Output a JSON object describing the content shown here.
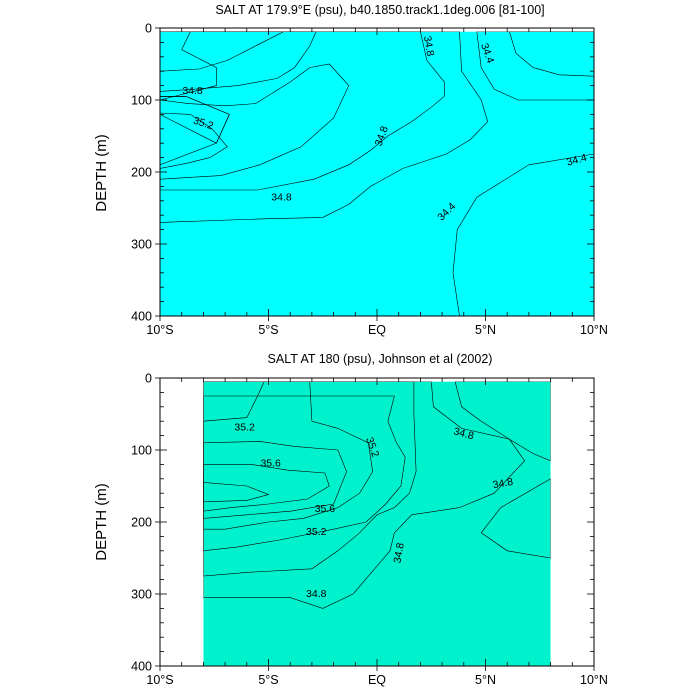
{
  "chart_data": [
    {
      "type": "contour",
      "title": "SALT AT 179.9°E (psu), b40.1850.track1.1deg.006 [81-100]",
      "ylabel": "DEPTH (m)",
      "xlim": [
        -10,
        10
      ],
      "ylim": [
        400,
        0
      ],
      "x_ticks": [
        {
          "value": -10,
          "label": "10°S"
        },
        {
          "value": -5,
          "label": "5°S"
        },
        {
          "value": 0,
          "label": "EQ"
        },
        {
          "value": 5,
          "label": "5°N"
        },
        {
          "value": 10,
          "label": "10°N"
        }
      ],
      "y_ticks": [
        {
          "value": 0,
          "label": "0"
        },
        {
          "value": 100,
          "label": "100"
        },
        {
          "value": 200,
          "label": "200"
        },
        {
          "value": 300,
          "label": "300"
        },
        {
          "value": 400,
          "label": "400"
        }
      ],
      "data_extent_x": [
        -10,
        10
      ],
      "data_extent_y": [
        5,
        400
      ],
      "regions": [
        {
          "level": "34.2-34.4",
          "color": "#00ccff",
          "points": [
            [
              -10,
              5
            ],
            [
              -4.3,
              5
            ],
            [
              -5.4,
              22
            ],
            [
              -6.9,
              45
            ],
            [
              -8.2,
              57
            ],
            [
              -10,
              60
            ]
          ]
        },
        {
          "level": "34.2-34.4",
          "color": "#00ccff",
          "points": [
            [
              6.1,
              5
            ],
            [
              10,
              5
            ],
            [
              10,
              67
            ],
            [
              8.4,
              65
            ],
            [
              7.2,
              55
            ],
            [
              6.4,
              35
            ]
          ]
        },
        {
          "level": "34.4-34.6",
          "color": "#33e6ff",
          "points": [
            [
              -10,
              5
            ],
            [
              -2.8,
              5
            ],
            [
              -3.1,
              25
            ],
            [
              -3.8,
              55
            ],
            [
              -4.6,
              70
            ],
            [
              -6.4,
              80
            ],
            [
              -8.4,
              85
            ],
            [
              -10,
              88
            ]
          ]
        },
        {
          "level": "34.4-34.6",
          "color": "#33e6ff",
          "points": [
            [
              4.6,
              5
            ],
            [
              10,
              5
            ],
            [
              10,
              100
            ],
            [
              6.5,
              100
            ],
            [
              5.4,
              85
            ],
            [
              4.8,
              55
            ]
          ]
        },
        {
          "level": "34.4-34.6",
          "color": "#33e6ff",
          "points": [
            [
              10,
              175
            ],
            [
              7,
              190
            ],
            [
              4.6,
              235
            ],
            [
              3.7,
              280
            ],
            [
              3.5,
              340
            ],
            [
              3.8,
              400
            ],
            [
              10,
              400
            ]
          ]
        },
        {
          "level": "34.6-34.8",
          "color": "#00f2e6",
          "points": [
            [
              -10,
              5
            ],
            [
              3.8,
              5
            ],
            [
              3.9,
              60
            ],
            [
              4.8,
              100
            ],
            [
              5.1,
              130
            ],
            [
              4.3,
              155
            ],
            [
              3.2,
              175
            ],
            [
              1.2,
              195
            ],
            [
              -0.3,
              220
            ],
            [
              -1.3,
              245
            ],
            [
              -2.5,
              263
            ],
            [
              -5.2,
              265
            ],
            [
              -10,
              270
            ],
            [
              -10,
              120
            ],
            [
              -7.4,
              160
            ],
            [
              -6.8,
              120
            ],
            [
              -8.8,
              95
            ],
            [
              -10,
              95
            ]
          ]
        },
        {
          "level": "34.8-35.0",
          "color": "#00f0b0",
          "points": [
            [
              -10,
              95
            ],
            [
              -8.8,
              95
            ],
            [
              -6.8,
              120
            ],
            [
              -7.4,
              160
            ],
            [
              -10,
              190
            ]
          ]
        },
        {
          "level": "34.8-35.0",
          "color": "#00f0b0",
          "points": [
            [
              -8.6,
              5
            ],
            [
              2,
              5
            ],
            [
              2.3,
              45
            ],
            [
              3.1,
              75
            ],
            [
              3.1,
              95
            ],
            [
              2.5,
              110
            ],
            [
              1.6,
              130
            ],
            [
              0.5,
              150
            ],
            [
              -0.3,
              170
            ],
            [
              -1.3,
              190
            ],
            [
              -2.9,
              210
            ],
            [
              -5.5,
              225
            ],
            [
              -10,
              225
            ],
            [
              -10,
              100
            ],
            [
              -7.4,
              80
            ],
            [
              -7.4,
              55
            ],
            [
              -9,
              30
            ]
          ]
        },
        {
          "level": "35.0-35.2",
          "color": "#33ee77",
          "points": [
            [
              -10,
              100
            ],
            [
              -8.7,
              105
            ],
            [
              -7,
              108
            ],
            [
              -5.6,
              105
            ],
            [
              -4,
              75
            ],
            [
              -3.1,
              55
            ],
            [
              -2.2,
              50
            ],
            [
              -1.3,
              80
            ],
            [
              -2,
              125
            ],
            [
              -3.5,
              165
            ],
            [
              -5.4,
              190
            ],
            [
              -7.2,
              205
            ],
            [
              -10,
              210
            ]
          ]
        },
        {
          "level": "35.2-35.4",
          "color": "#00e600",
          "points": [
            [
              -10,
              118
            ],
            [
              -8.6,
              120
            ],
            [
              -7.6,
              140
            ],
            [
              -6.9,
              165
            ],
            [
              -7.7,
              180
            ],
            [
              -8.8,
              188
            ],
            [
              -10,
              195
            ]
          ]
        }
      ],
      "contour_labels": [
        {
          "text": "34.8",
          "x": -8.5,
          "y": 87,
          "angle": 0
        },
        {
          "text": "35.2",
          "x": -8.0,
          "y": 132,
          "angle": 18
        },
        {
          "text": "34.8",
          "x": -4.4,
          "y": 235,
          "angle": 0
        },
        {
          "text": "34.8",
          "x": 2.4,
          "y": 25,
          "angle": 80
        },
        {
          "text": "34.4",
          "x": 5.1,
          "y": 35,
          "angle": 70
        },
        {
          "text": "34.8",
          "x": 0.2,
          "y": 150,
          "angle": -70
        },
        {
          "text": "34.4",
          "x": 9.2,
          "y": 183,
          "angle": -15
        },
        {
          "text": "34.4",
          "x": 3.2,
          "y": 255,
          "angle": -45
        }
      ]
    },
    {
      "type": "contour",
      "title": "SALT AT 180 (psu), Johnson et al (2002)",
      "ylabel": "DEPTH (m)",
      "xlim": [
        -10,
        10
      ],
      "ylim": [
        400,
        0
      ],
      "x_ticks": [
        {
          "value": -10,
          "label": "10°S"
        },
        {
          "value": -5,
          "label": "5°S"
        },
        {
          "value": 0,
          "label": "EQ"
        },
        {
          "value": 5,
          "label": "5°N"
        },
        {
          "value": 10,
          "label": "10°N"
        }
      ],
      "y_ticks": [
        {
          "value": 0,
          "label": "0"
        },
        {
          "value": 100,
          "label": "100"
        },
        {
          "value": 200,
          "label": "200"
        },
        {
          "value": 300,
          "label": "300"
        },
        {
          "value": 400,
          "label": "400"
        }
      ],
      "data_extent_x": [
        -8,
        8
      ],
      "data_extent_y": [
        5,
        400
      ],
      "regions": [
        {
          "level": "34.4-34.6",
          "color": "#00eeee",
          "points": [
            [
              3.6,
              5
            ],
            [
              8,
              5
            ],
            [
              8,
              115
            ],
            [
              7.2,
              105
            ],
            [
              6.1,
              85
            ],
            [
              4.8,
              60
            ],
            [
              3.9,
              40
            ]
          ]
        },
        {
          "level": "34.4-34.6",
          "color": "#00eeee",
          "points": [
            [
              8,
              140
            ],
            [
              5.7,
              180
            ],
            [
              4.8,
              215
            ],
            [
              6,
              240
            ],
            [
              8,
              250
            ]
          ]
        },
        {
          "level": "34.6-34.8",
          "color": "#00f0c0",
          "points": [
            [
              -8,
              5
            ],
            [
              2.5,
              5
            ],
            [
              2.6,
              40
            ],
            [
              3.9,
              70
            ],
            [
              6.1,
              85
            ],
            [
              6.8,
              115
            ],
            [
              5.4,
              160
            ],
            [
              3.8,
              180
            ],
            [
              1.6,
              190
            ],
            [
              0.8,
              215
            ],
            [
              0.6,
              240
            ],
            [
              -1.1,
              300
            ],
            [
              -2.5,
              320
            ],
            [
              -4,
              305
            ],
            [
              -8,
              305
            ]
          ]
        },
        {
          "level": "34.8-35.0",
          "color": "#00ee99",
          "points": [
            [
              -8,
              5
            ],
            [
              1.7,
              5
            ],
            [
              1.7,
              50
            ],
            [
              1.8,
              130
            ],
            [
              1.5,
              160
            ],
            [
              0.8,
              180
            ],
            [
              0,
              190
            ],
            [
              -0.8,
              215
            ],
            [
              -1.8,
              240
            ],
            [
              -3,
              265
            ],
            [
              -6,
              270
            ],
            [
              -8,
              275
            ]
          ]
        },
        {
          "level": "35.0-35.2",
          "color": "#33ee55",
          "points": [
            [
              -8,
              25
            ],
            [
              0.8,
              25
            ],
            [
              0.5,
              60
            ],
            [
              0.9,
              90
            ],
            [
              1.3,
              110
            ],
            [
              1.1,
              150
            ],
            [
              0.4,
              175
            ],
            [
              -0.5,
              200
            ],
            [
              -2,
              210
            ],
            [
              -4.5,
              225
            ],
            [
              -6.5,
              235
            ],
            [
              -8,
              240
            ]
          ]
        },
        {
          "level": "35.2-35.4",
          "color": "#00e600",
          "points": [
            [
              -5.2,
              5
            ],
            [
              -3.1,
              5
            ],
            [
              -3,
              60
            ],
            [
              -1.8,
              70
            ],
            [
              -0.4,
              90
            ],
            [
              -0.2,
              130
            ],
            [
              -0.8,
              160
            ],
            [
              -1.8,
              180
            ],
            [
              -3.4,
              195
            ],
            [
              -5,
              200
            ],
            [
              -7,
              210
            ],
            [
              -8,
              210
            ],
            [
              -8,
              60
            ],
            [
              -6,
              55
            ],
            [
              -5.5,
              25
            ]
          ]
        },
        {
          "level": "35.4-35.6",
          "color": "#99ee33",
          "points": [
            [
              -8,
              90
            ],
            [
              -5.4,
              88
            ],
            [
              -3.8,
              95
            ],
            [
              -1.8,
              100
            ],
            [
              -1.4,
              130
            ],
            [
              -2,
              175
            ],
            [
              -4,
              185
            ],
            [
              -6,
              190
            ],
            [
              -8,
              195
            ]
          ]
        },
        {
          "level": "35.6-35.8",
          "color": "#eeee00",
          "points": [
            [
              -8,
              120
            ],
            [
              -5.8,
              120
            ],
            [
              -4.1,
              128
            ],
            [
              -2.4,
              132
            ],
            [
              -2.2,
              150
            ],
            [
              -3.2,
              168
            ],
            [
              -5,
              175
            ],
            [
              -6.7,
              180
            ],
            [
              -8,
              185
            ]
          ]
        },
        {
          "level": "35.8-36.0",
          "color": "#ffcc33",
          "points": [
            [
              -8,
              145
            ],
            [
              -6,
              150
            ],
            [
              -5,
              162
            ],
            [
              -6,
              170
            ],
            [
              -8,
              172
            ]
          ]
        }
      ],
      "contour_labels": [
        {
          "text": "35.2",
          "x": -6.1,
          "y": 68,
          "angle": 0
        },
        {
          "text": "35.6",
          "x": -4.9,
          "y": 118,
          "angle": 0
        },
        {
          "text": "35.6",
          "x": -2.4,
          "y": 181,
          "angle": 0
        },
        {
          "text": "35.2",
          "x": -2.8,
          "y": 213,
          "angle": 0
        },
        {
          "text": "35.2",
          "x": -0.2,
          "y": 96,
          "angle": 70
        },
        {
          "text": "34.8",
          "x": 4.0,
          "y": 77,
          "angle": 15
        },
        {
          "text": "34.8",
          "x": 5.8,
          "y": 146,
          "angle": -10
        },
        {
          "text": "34.8",
          "x": 1.0,
          "y": 243,
          "angle": -80
        },
        {
          "text": "34.8",
          "x": -2.8,
          "y": 299,
          "angle": 0
        }
      ]
    }
  ]
}
